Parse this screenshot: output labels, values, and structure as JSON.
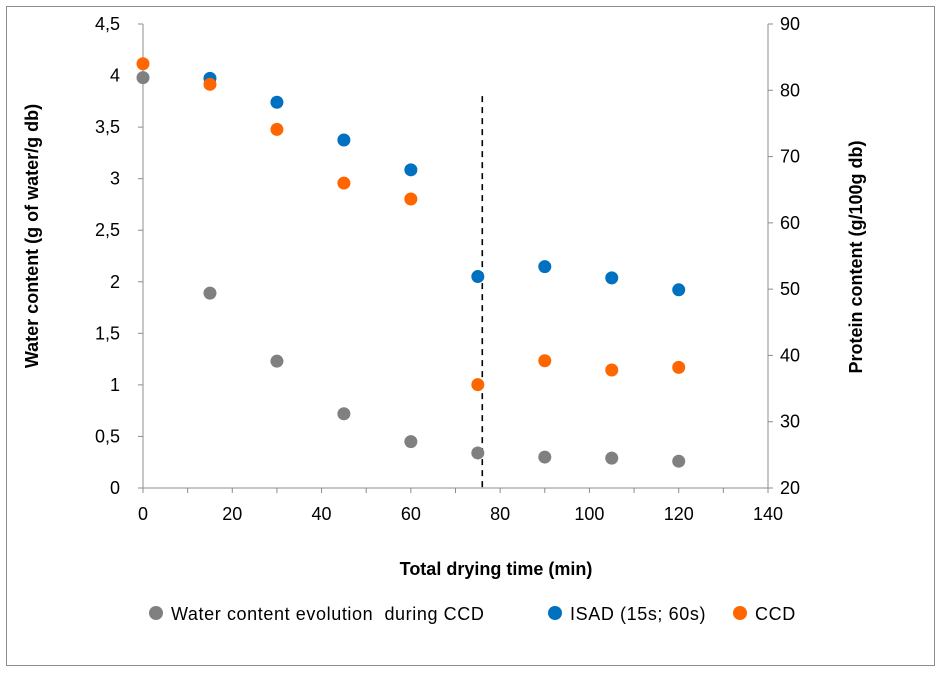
{
  "chart_data": {
    "type": "scatter",
    "xlabel": "Total drying time (min)",
    "ylabel": "Water content (g of water/g db)",
    "y2label": "Protein content (g/100g db)",
    "xlim": [
      0,
      140
    ],
    "ylim": [
      0,
      4.5
    ],
    "y2lim": [
      20,
      90
    ],
    "x_ticks": [
      "0",
      "20",
      "40",
      "60",
      "80",
      "100",
      "120",
      "140"
    ],
    "y_ticks": [
      "0",
      "0,5",
      "1",
      "1,5",
      "2",
      "2,5",
      "3",
      "3,5",
      "4",
      "4,5"
    ],
    "y2_ticks": [
      "20",
      "30",
      "40",
      "50",
      "60",
      "70",
      "80",
      "90"
    ],
    "grid": false,
    "legend_position": "bottom",
    "vline": {
      "x": 76,
      "y_top": 3.8,
      "style": "dashed"
    },
    "series": [
      {
        "name": "Water content evolution  during CCD",
        "axis": "left",
        "color": "#808080",
        "x": [
          0,
          15,
          30,
          45,
          60,
          75,
          90,
          105,
          120
        ],
        "y": [
          3.98,
          1.89,
          1.23,
          0.72,
          0.45,
          0.34,
          0.3,
          0.29,
          0.26
        ]
      },
      {
        "name": "ISAD (15s; 60s)",
        "axis": "right",
        "color": "#0070C0",
        "x": [
          15,
          30,
          45,
          60,
          75,
          90,
          105,
          120
        ],
        "y": [
          81.8,
          78.2,
          72.5,
          68.0,
          51.9,
          53.4,
          51.7,
          49.9
        ]
      },
      {
        "name": "CCD",
        "axis": "right",
        "color": "#FF6600",
        "x": [
          0,
          15,
          30,
          45,
          60,
          75,
          90,
          105,
          120
        ],
        "y": [
          84.0,
          80.9,
          74.1,
          66.0,
          63.6,
          35.6,
          39.2,
          37.8,
          38.2
        ]
      }
    ]
  }
}
